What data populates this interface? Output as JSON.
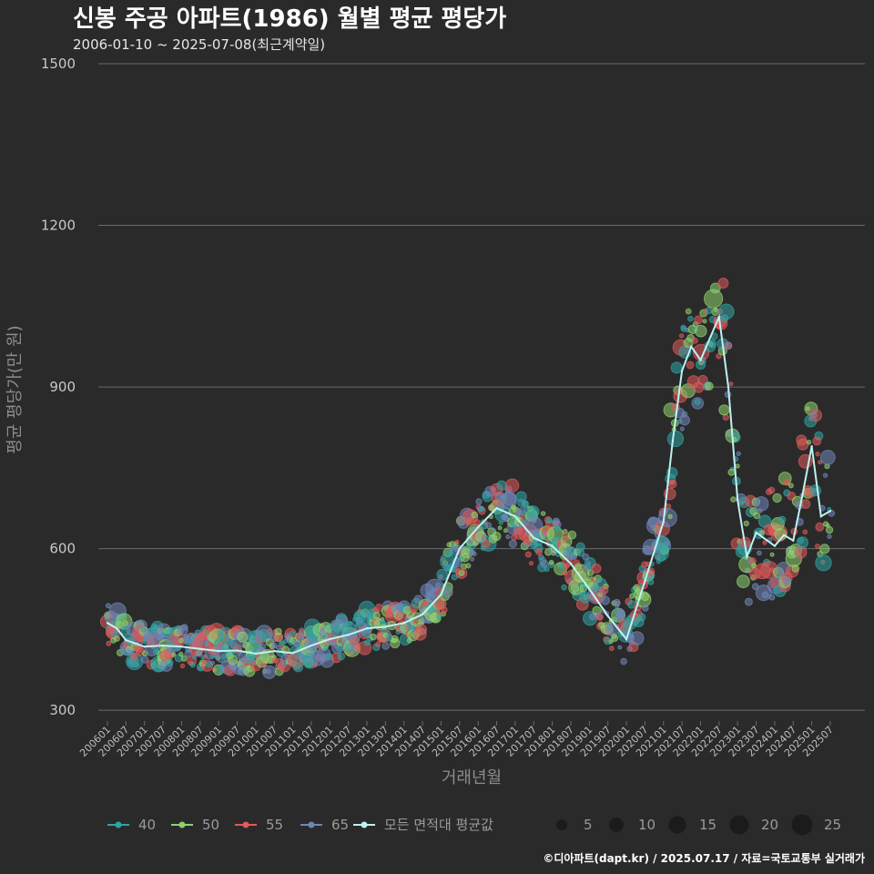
{
  "chart_data": {
    "type": "scatter",
    "title": "신봉 주공 아파트(1986) 월별 평균 평당가",
    "subtitle": "2006-01-10 ~ 2025-07-08(최근계약일)",
    "xlabel": "거래년월",
    "ylabel": "평균 평당가(만 원)",
    "ylim": [
      280,
      1500
    ],
    "yticks": [
      300,
      600,
      900,
      1200,
      1500
    ],
    "xticks": [
      "200601",
      "200607",
      "200701",
      "200707",
      "200801",
      "200807",
      "200901",
      "200907",
      "201001",
      "201007",
      "201101",
      "201107",
      "201201",
      "201207",
      "201301",
      "201307",
      "201401",
      "201407",
      "201501",
      "201507",
      "201601",
      "201607",
      "201701",
      "201707",
      "201801",
      "201807",
      "201901",
      "201907",
      "202001",
      "202007",
      "202101",
      "202107",
      "202201",
      "202207",
      "202301",
      "202307",
      "202401",
      "202407",
      "202501",
      "202507"
    ],
    "grid": true,
    "series": [
      {
        "name": "40",
        "color": "#2fa4a4"
      },
      {
        "name": "50",
        "color": "#8fd16f"
      },
      {
        "name": "55",
        "color": "#e05a5a"
      },
      {
        "name": "65",
        "color": "#6f86b8"
      },
      {
        "name": "모든 면적대 평균값",
        "color": "#bff2f2"
      }
    ],
    "size_legend": [
      5,
      10,
      15,
      20,
      25
    ],
    "average_line": [
      {
        "x": "200601",
        "y": 462
      },
      {
        "x": "200604",
        "y": 452
      },
      {
        "x": "200607",
        "y": 430
      },
      {
        "x": "200701",
        "y": 418
      },
      {
        "x": "200707",
        "y": 420
      },
      {
        "x": "200801",
        "y": 418
      },
      {
        "x": "200807",
        "y": 414
      },
      {
        "x": "200901",
        "y": 410
      },
      {
        "x": "200907",
        "y": 411
      },
      {
        "x": "201001",
        "y": 405
      },
      {
        "x": "201007",
        "y": 410
      },
      {
        "x": "201101",
        "y": 406
      },
      {
        "x": "201107",
        "y": 420
      },
      {
        "x": "201201",
        "y": 432
      },
      {
        "x": "201207",
        "y": 440
      },
      {
        "x": "201301",
        "y": 452
      },
      {
        "x": "201307",
        "y": 455
      },
      {
        "x": "201401",
        "y": 462
      },
      {
        "x": "201407",
        "y": 478
      },
      {
        "x": "201501",
        "y": 515
      },
      {
        "x": "201507",
        "y": 600
      },
      {
        "x": "201601",
        "y": 640
      },
      {
        "x": "201607",
        "y": 675
      },
      {
        "x": "201701",
        "y": 660
      },
      {
        "x": "201707",
        "y": 620
      },
      {
        "x": "201801",
        "y": 605
      },
      {
        "x": "201807",
        "y": 572
      },
      {
        "x": "201901",
        "y": 525
      },
      {
        "x": "201907",
        "y": 475
      },
      {
        "x": "202001",
        "y": 432
      },
      {
        "x": "202007",
        "y": 540
      },
      {
        "x": "202101",
        "y": 650
      },
      {
        "x": "202104",
        "y": 800
      },
      {
        "x": "202107",
        "y": 930
      },
      {
        "x": "202110",
        "y": 975
      },
      {
        "x": "202201",
        "y": 950
      },
      {
        "x": "202207",
        "y": 1030
      },
      {
        "x": "202210",
        "y": 900
      },
      {
        "x": "202301",
        "y": 690
      },
      {
        "x": "202304",
        "y": 585
      },
      {
        "x": "202307",
        "y": 630
      },
      {
        "x": "202401",
        "y": 605
      },
      {
        "x": "202404",
        "y": 625
      },
      {
        "x": "202407",
        "y": 615
      },
      {
        "x": "202410",
        "y": 700
      },
      {
        "x": "202501",
        "y": 790
      },
      {
        "x": "202504",
        "y": 660
      },
      {
        "x": "202507",
        "y": 670
      }
    ],
    "size_scale": "bubble area proportional to transaction count"
  },
  "legend": {
    "items": [
      "40",
      "50",
      "55",
      "65",
      "모든 면적대 평균값"
    ],
    "sizes": [
      "5",
      "10",
      "15",
      "20",
      "25"
    ]
  },
  "source_text": "©디아파트(dapt.kr) / 2025.07.17 / 자료=국토교통부 실거래가"
}
